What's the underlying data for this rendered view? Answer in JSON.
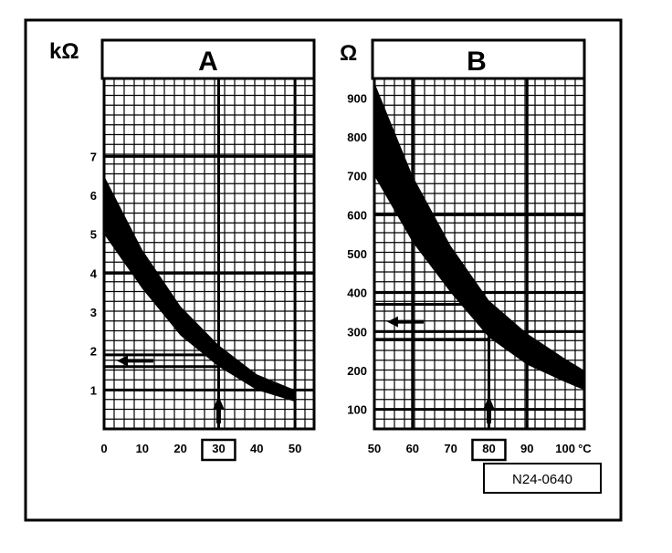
{
  "reference_code": "N24-0640",
  "chart_data": [
    {
      "type": "area",
      "title": "A",
      "ylabel": "kΩ",
      "xlabel": "",
      "x_ticks": [
        "0",
        "10",
        "20",
        "30",
        "40",
        "50"
      ],
      "y_ticks": [
        "1",
        "2",
        "3",
        "4",
        "5",
        "6",
        "7"
      ],
      "xlim": [
        0,
        55
      ],
      "ylim": [
        0,
        9
      ],
      "grid": true,
      "series": [
        {
          "x": [
            0,
            10,
            20,
            30,
            40,
            50
          ],
          "y": [
            6.5,
            4.6,
            3.15,
            2.15,
            1.4,
            1.0
          ]
        },
        {
          "x": [
            0,
            10,
            20,
            30,
            40,
            50
          ],
          "y": [
            5.0,
            3.6,
            2.4,
            1.6,
            1.0,
            0.7
          ]
        }
      ],
      "annotations": [
        {
          "label": "30",
          "x": 30,
          "boxed": true
        },
        {
          "label": "reading",
          "x": 30,
          "y_range": [
            1.6,
            1.9
          ]
        }
      ]
    },
    {
      "type": "area",
      "title": "B",
      "ylabel": "Ω",
      "xlabel": "°C",
      "x_ticks": [
        "50",
        "60",
        "70",
        "80",
        "90",
        "100"
      ],
      "y_ticks": [
        "100",
        "200",
        "300",
        "400",
        "500",
        "600",
        "700",
        "800",
        "900"
      ],
      "xlim": [
        50,
        105
      ],
      "ylim": [
        50,
        950
      ],
      "grid": true,
      "series": [
        {
          "x": [
            50,
            60,
            70,
            80,
            90,
            100,
            105
          ],
          "y": [
            940,
            700,
            520,
            380,
            295,
            230,
            200
          ]
        },
        {
          "x": [
            50,
            60,
            70,
            80,
            90,
            100,
            105
          ],
          "y": [
            700,
            530,
            400,
            285,
            215,
            170,
            150
          ]
        }
      ],
      "annotations": [
        {
          "label": "80",
          "x": 80,
          "boxed": true
        },
        {
          "label": "reading",
          "x": 80,
          "y_range": [
            280,
            370
          ]
        }
      ]
    }
  ]
}
